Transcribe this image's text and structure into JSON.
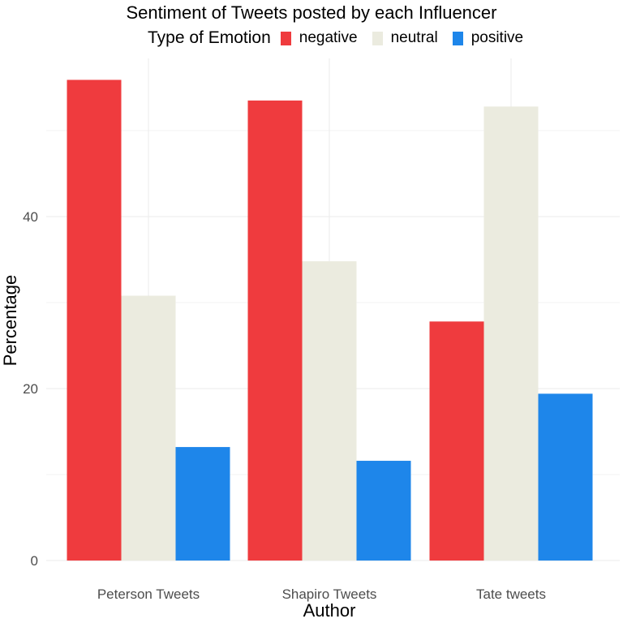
{
  "chart_data": {
    "type": "bar",
    "title": "Sentiment of Tweets posted by each Influencer",
    "xlabel": "Author",
    "ylabel": "Percentage",
    "categories": [
      "Peterson Tweets",
      "Shapiro Tweets",
      "Tate tweets"
    ],
    "legend_title": "Type of Emotion",
    "legend_position": "top",
    "series": [
      {
        "name": "negative",
        "color": "#ef3b3e",
        "values": [
          55.9,
          53.5,
          27.8
        ]
      },
      {
        "name": "neutral",
        "color": "#ebebdf",
        "values": [
          30.8,
          34.8,
          52.8
        ]
      },
      {
        "name": "positive",
        "color": "#1e86ea",
        "values": [
          13.2,
          11.6,
          19.4
        ]
      }
    ],
    "ylim": [
      0,
      60
    ],
    "yticks": [
      0,
      20,
      40
    ],
    "yticks_display": [
      "0",
      "20",
      "40"
    ],
    "grid": true
  }
}
